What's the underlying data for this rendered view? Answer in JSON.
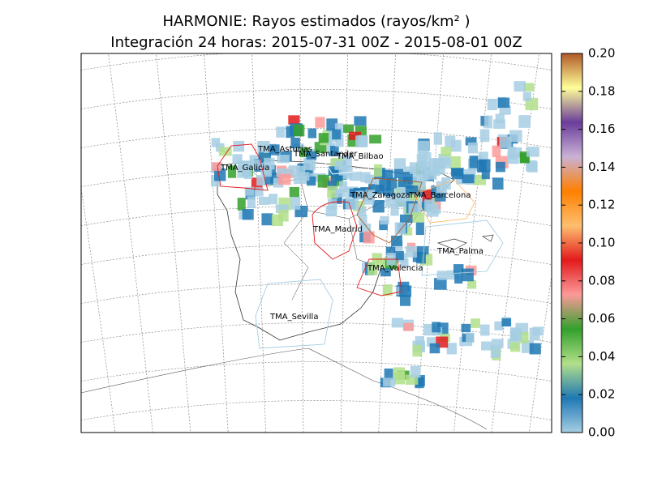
{
  "chart_data": {
    "type": "map",
    "title": "HARMONIE: Rayos estimados (rayos/km² )",
    "subtitle": "Integración 24 horas: 2015-07-31 00Z - 2015-08-01 00Z",
    "regions": [
      "TMA_Asturias",
      "TMA_Santander",
      "TMA_Bilbao",
      "TMA_Galicia",
      "TMA_Zaragoza",
      "TMA_Barcelona",
      "TMA_Madrid",
      "TMA_Palma",
      "TMA_Valencia",
      "TMA_Sevilla"
    ],
    "colorbar": {
      "lim": [
        0,
        0.2
      ],
      "ticks": [
        {
          "value": 0,
          "label": "0.00"
        },
        {
          "value": 0.02,
          "label": "0.02"
        },
        {
          "value": 0.04,
          "label": "0.04"
        },
        {
          "value": 0.06,
          "label": "0.06"
        },
        {
          "value": 0.08,
          "label": "0.08"
        },
        {
          "value": 0.1,
          "label": "0.10"
        },
        {
          "value": 0.12,
          "label": "0.12"
        },
        {
          "value": 0.14,
          "label": "0.14"
        },
        {
          "value": 0.16,
          "label": "0.16"
        },
        {
          "value": 0.18,
          "label": "0.18"
        },
        {
          "value": 0.2,
          "label": "0.20"
        }
      ],
      "colormap": [
        "#a6cee3",
        "#1f78b4",
        "#b2df8a",
        "#33a02c",
        "#fb9a99",
        "#e31a1c",
        "#fdbf6f",
        "#ff7f00",
        "#cab2d6",
        "#6a3d9a",
        "#ffff99",
        "#b15928"
      ]
    }
  }
}
